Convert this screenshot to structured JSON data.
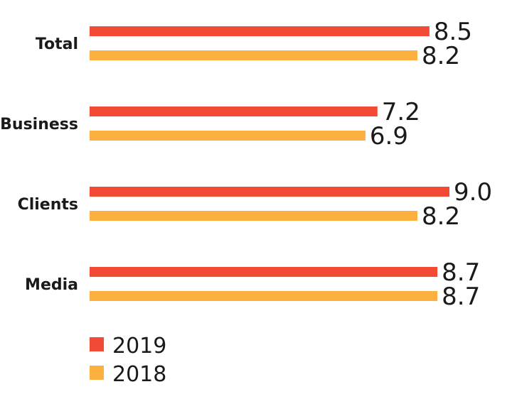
{
  "chart_data": {
    "type": "bar",
    "orientation": "horizontal",
    "categories": [
      "Total",
      "Business",
      "Clients",
      "Media"
    ],
    "series": [
      {
        "name": "2019",
        "color": "#f24a35",
        "values": [
          8.5,
          7.2,
          9.0,
          8.7
        ],
        "labels": [
          "8.5",
          "7.2",
          "9.0",
          "8.7"
        ]
      },
      {
        "name": "2018",
        "color": "#fbb03f",
        "values": [
          8.2,
          6.9,
          8.2,
          8.7
        ],
        "labels": [
          "8.2",
          "6.9",
          "8.2",
          "8.7"
        ]
      }
    ],
    "title": "",
    "xlabel": "",
    "ylabel": "",
    "xlim": [
      0,
      9.0
    ],
    "grid": false,
    "legend_position": "bottom-left"
  }
}
